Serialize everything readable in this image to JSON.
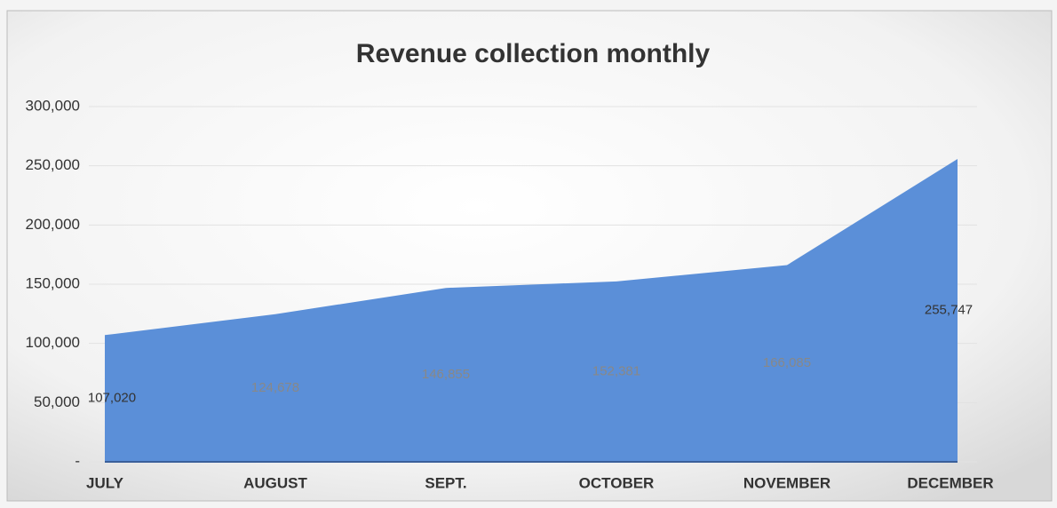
{
  "chart_data": {
    "type": "area",
    "title": "Revenue collection monthly",
    "categories": [
      "JULY",
      "AUGUST",
      "SEPT.",
      "OCTOBER",
      "NOVEMBER",
      "DECEMBER"
    ],
    "values": [
      107020,
      124678,
      146855,
      152381,
      166085,
      255747
    ],
    "value_labels": [
      "107,020",
      "124,678",
      "146,855",
      "152,381",
      "166,085",
      "255,747"
    ],
    "color": "#5b8fd8",
    "ylim": [
      0,
      300000
    ],
    "yticks": [
      {
        "value": 0,
        "label": "-"
      },
      {
        "value": 50000,
        "label": "50,000"
      },
      {
        "value": 100000,
        "label": "100,000"
      },
      {
        "value": 150000,
        "label": "150,000"
      },
      {
        "value": 200000,
        "label": "200,000"
      },
      {
        "value": 250000,
        "label": "250,000"
      },
      {
        "value": 300000,
        "label": "300,000"
      }
    ],
    "grid": true
  }
}
